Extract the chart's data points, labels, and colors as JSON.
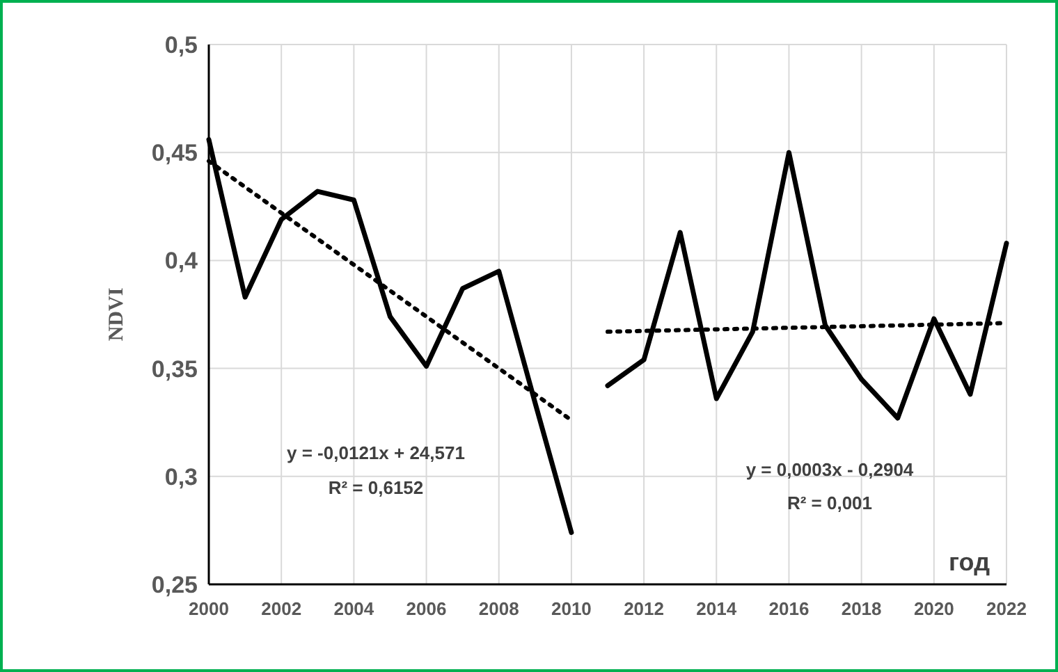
{
  "chart_data": {
    "type": "line",
    "ylabel": "NDVI",
    "xlabel": "год",
    "xlim": [
      2000,
      2022
    ],
    "xticks": [
      2000,
      2002,
      2004,
      2006,
      2008,
      2010,
      2012,
      2014,
      2016,
      2018,
      2020,
      2022
    ],
    "ylim": [
      0.25,
      0.5
    ],
    "yticks": [
      {
        "value": 0.25,
        "label": "0,25"
      },
      {
        "value": 0.3,
        "label": "0,3"
      },
      {
        "value": 0.35,
        "label": "0,35"
      },
      {
        "value": 0.4,
        "label": "0,4"
      },
      {
        "value": 0.45,
        "label": "0,45"
      },
      {
        "value": 0.5,
        "label": "0,5"
      }
    ],
    "grid": true,
    "marker": "none",
    "series": [
      {
        "color": "#000000",
        "x": [
          2000,
          2001,
          2002,
          2003,
          2004,
          2005,
          2006,
          2007,
          2008,
          2009,
          2010
        ],
        "values": [
          0.456,
          0.383,
          0.419,
          0.432,
          0.428,
          0.374,
          0.351,
          0.387,
          0.395,
          0.334,
          0.274
        ]
      },
      {
        "color": "#000000",
        "x": [
          2011,
          2012,
          2013,
          2014,
          2015,
          2016,
          2017,
          2018,
          2019,
          2020,
          2021,
          2022
        ],
        "values": [
          0.342,
          0.354,
          0.413,
          0.336,
          0.367,
          0.45,
          0.37,
          0.345,
          0.327,
          0.373,
          0.338,
          0.408
        ]
      },
      {
        "type": "line",
        "line_style": "dotted",
        "color": "#000000",
        "x": [
          2000,
          2010
        ],
        "values": [
          0.446,
          0.326
        ]
      },
      {
        "type": "line",
        "line_style": "dotted",
        "color": "#000000",
        "x": [
          2011,
          2022
        ],
        "values": [
          0.367,
          0.371
        ]
      }
    ],
    "annotations": [
      "y = -0,0121x + 24,571",
      "R² = 0,6152",
      "y = 0,0003x - 0,2904",
      "R² = 0,001"
    ]
  }
}
